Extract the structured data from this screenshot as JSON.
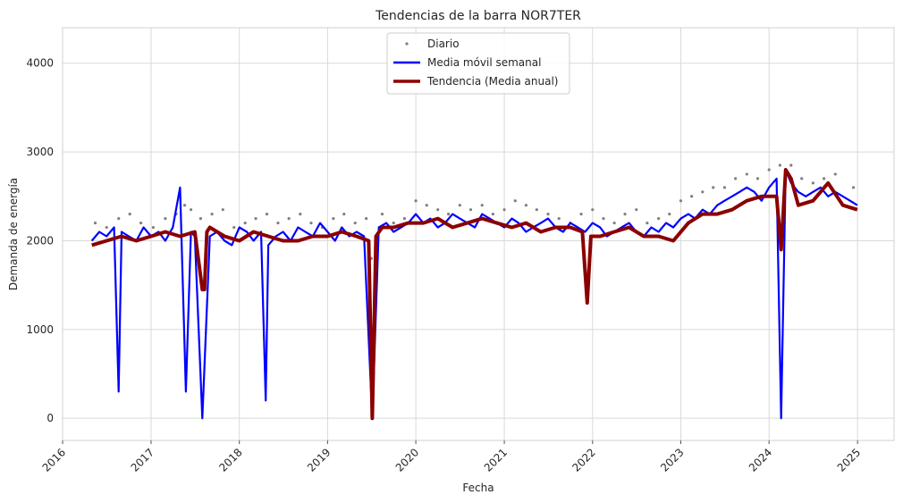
{
  "chart_data": {
    "type": "line",
    "title": "Tendencias de la barra NOR7TER",
    "xlabel": "Fecha",
    "ylabel": "Demanda de energía",
    "xlim": [
      "2016-01-01",
      "2025-06-01"
    ],
    "ylim": [
      -250,
      4400
    ],
    "x_ticks": [
      "2016",
      "2017",
      "2018",
      "2019",
      "2020",
      "2021",
      "2022",
      "2023",
      "2024",
      "2025"
    ],
    "y_ticks": [
      0,
      1000,
      2000,
      3000,
      4000
    ],
    "grid": true,
    "legend_position": "top-center",
    "series": [
      {
        "name": "Diario",
        "kind": "scatter",
        "color": "#808080",
        "x": [
          "2016-05-15",
          "2016-07-01",
          "2016-08-20",
          "2016-10-05",
          "2016-11-20",
          "2017-01-10",
          "2017-03-01",
          "2017-04-15",
          "2017-05-20",
          "2017-06-15",
          "2017-07-25",
          "2017-09-10",
          "2017-10-25",
          "2017-12-10",
          "2018-01-25",
          "2018-03-10",
          "2018-04-25",
          "2018-06-10",
          "2018-07-25",
          "2018-09-10",
          "2018-10-25",
          "2018-12-10",
          "2019-01-25",
          "2019-03-10",
          "2019-04-25",
          "2019-06-10",
          "2019-07-01",
          "2019-08-15",
          "2019-10-01",
          "2019-11-15",
          "2020-01-01",
          "2020-02-15",
          "2020-04-01",
          "2020-05-15",
          "2020-07-01",
          "2020-08-15",
          "2020-10-01",
          "2020-11-15",
          "2021-01-01",
          "2021-02-15",
          "2021-04-01",
          "2021-05-15",
          "2021-07-01",
          "2021-08-15",
          "2021-10-01",
          "2021-11-15",
          "2022-01-01",
          "2022-02-15",
          "2022-04-01",
          "2022-05-15",
          "2022-07-01",
          "2022-08-15",
          "2022-10-01",
          "2022-11-15",
          "2023-01-01",
          "2023-02-15",
          "2023-04-01",
          "2023-05-15",
          "2023-07-01",
          "2023-08-15",
          "2023-10-01",
          "2023-11-15",
          "2024-01-01",
          "2024-02-15",
          "2024-04-01",
          "2024-05-15",
          "2024-07-01",
          "2024-08-15",
          "2024-10-01",
          "2024-12-15"
        ],
        "y": [
          2200,
          2150,
          2250,
          2300,
          2200,
          2150,
          2250,
          2300,
          2400,
          2350,
          2250,
          2300,
          2350,
          2150,
          2200,
          2250,
          2300,
          2200,
          2250,
          2300,
          2200,
          2150,
          2250,
          2300,
          2200,
          2250,
          1800,
          2300,
          2200,
          2250,
          2450,
          2400,
          2350,
          2300,
          2400,
          2350,
          2400,
          2300,
          2350,
          2450,
          2400,
          2350,
          2300,
          2250,
          2200,
          2300,
          2350,
          2250,
          2200,
          2300,
          2350,
          2200,
          2250,
          2300,
          2450,
          2500,
          2550,
          2600,
          2600,
          2700,
          2750,
          2700,
          2800,
          2850,
          2850,
          2700,
          2650,
          2700,
          2750,
          2600
        ]
      },
      {
        "name": "Media móvil semanal",
        "kind": "line",
        "color": "#0000ff",
        "x": [
          "2016-05-01",
          "2016-06-01",
          "2016-07-01",
          "2016-08-01",
          "2016-08-20",
          "2016-09-01",
          "2016-10-01",
          "2016-11-01",
          "2016-12-01",
          "2017-01-01",
          "2017-02-01",
          "2017-03-01",
          "2017-04-01",
          "2017-05-01",
          "2017-05-25",
          "2017-06-15",
          "2017-07-01",
          "2017-08-01",
          "2017-09-01",
          "2017-10-01",
          "2017-11-01",
          "2017-12-01",
          "2018-01-01",
          "2018-02-01",
          "2018-03-01",
          "2018-04-01",
          "2018-04-20",
          "2018-05-01",
          "2018-06-01",
          "2018-07-01",
          "2018-08-01",
          "2018-09-01",
          "2018-10-01",
          "2018-11-01",
          "2018-12-01",
          "2019-01-01",
          "2019-02-01",
          "2019-03-01",
          "2019-04-01",
          "2019-05-01",
          "2019-06-01",
          "2019-07-05",
          "2019-08-01",
          "2019-09-01",
          "2019-10-01",
          "2019-11-01",
          "2019-12-01",
          "2020-01-01",
          "2020-02-01",
          "2020-03-01",
          "2020-04-01",
          "2020-05-01",
          "2020-06-01",
          "2020-07-01",
          "2020-08-01",
          "2020-09-01",
          "2020-10-01",
          "2020-11-01",
          "2020-12-01",
          "2021-01-01",
          "2021-02-01",
          "2021-03-01",
          "2021-04-01",
          "2021-05-01",
          "2021-06-01",
          "2021-07-01",
          "2021-08-01",
          "2021-09-01",
          "2021-10-01",
          "2021-11-01",
          "2021-12-01",
          "2022-01-01",
          "2022-02-01",
          "2022-03-01",
          "2022-04-01",
          "2022-05-01",
          "2022-06-01",
          "2022-07-01",
          "2022-08-01",
          "2022-09-01",
          "2022-10-01",
          "2022-11-01",
          "2022-12-01",
          "2023-01-01",
          "2023-02-01",
          "2023-03-01",
          "2023-04-01",
          "2023-05-01",
          "2023-06-01",
          "2023-07-01",
          "2023-08-01",
          "2023-09-01",
          "2023-10-01",
          "2023-11-01",
          "2023-12-01",
          "2024-01-01",
          "2024-02-01",
          "2024-02-20",
          "2024-03-10",
          "2024-04-01",
          "2024-05-01",
          "2024-06-01",
          "2024-07-01",
          "2024-08-01",
          "2024-09-01",
          "2024-10-01",
          "2024-11-01",
          "2024-12-01",
          "2024-12-31"
        ],
        "y": [
          2000,
          2100,
          2050,
          2150,
          300,
          2100,
          2050,
          2000,
          2150,
          2050,
          2100,
          2000,
          2150,
          2600,
          300,
          2100,
          2050,
          0,
          2050,
          2100,
          2000,
          1950,
          2150,
          2100,
          2000,
          2100,
          200,
          1950,
          2050,
          2100,
          2000,
          2150,
          2100,
          2050,
          2200,
          2100,
          2000,
          2150,
          2050,
          2100,
          2050,
          0,
          2150,
          2200,
          2100,
          2150,
          2200,
          2300,
          2200,
          2250,
          2150,
          2200,
          2300,
          2250,
          2200,
          2150,
          2300,
          2250,
          2200,
          2150,
          2250,
          2200,
          2100,
          2150,
          2200,
          2250,
          2150,
          2100,
          2200,
          2150,
          2100,
          2200,
          2150,
          2050,
          2100,
          2150,
          2200,
          2100,
          2050,
          2150,
          2100,
          2200,
          2150,
          2250,
          2300,
          2250,
          2350,
          2300,
          2400,
          2450,
          2500,
          2550,
          2600,
          2550,
          2450,
          2600,
          2700,
          0,
          2800,
          2650,
          2550,
          2500,
          2550,
          2600,
          2500,
          2550,
          2500,
          2450,
          2400
        ]
      },
      {
        "name": "Tendencia (Media anual)",
        "kind": "line",
        "color": "#8b0000",
        "x": [
          "2016-05-01",
          "2016-07-01",
          "2016-09-01",
          "2016-11-01",
          "2017-01-01",
          "2017-03-01",
          "2017-05-01",
          "2017-07-01",
          "2017-08-01",
          "2017-08-10",
          "2017-08-20",
          "2017-09-01",
          "2017-11-01",
          "2018-01-01",
          "2018-03-01",
          "2018-05-01",
          "2018-07-01",
          "2018-09-01",
          "2018-11-01",
          "2019-01-01",
          "2019-03-01",
          "2019-05-01",
          "2019-06-20",
          "2019-07-05",
          "2019-07-20",
          "2019-08-15",
          "2019-10-01",
          "2019-12-01",
          "2020-02-01",
          "2020-04-01",
          "2020-06-01",
          "2020-08-01",
          "2020-10-01",
          "2020-12-01",
          "2021-02-01",
          "2021-04-01",
          "2021-06-01",
          "2021-08-01",
          "2021-10-01",
          "2021-11-20",
          "2021-12-10",
          "2021-12-25",
          "2022-02-01",
          "2022-04-01",
          "2022-06-01",
          "2022-08-01",
          "2022-10-01",
          "2022-12-01",
          "2023-02-01",
          "2023-04-01",
          "2023-06-01",
          "2023-08-01",
          "2023-10-01",
          "2023-12-01",
          "2024-02-01",
          "2024-02-20",
          "2024-03-10",
          "2024-04-01",
          "2024-05-01",
          "2024-07-01",
          "2024-09-01",
          "2024-11-01",
          "2024-12-31"
        ],
        "y": [
          1950,
          2000,
          2050,
          2000,
          2050,
          2100,
          2050,
          2100,
          1450,
          1450,
          2100,
          2150,
          2050,
          2000,
          2100,
          2050,
          2000,
          2000,
          2050,
          2050,
          2100,
          2050,
          2000,
          0,
          2050,
          2150,
          2150,
          2200,
          2200,
          2250,
          2150,
          2200,
          2250,
          2200,
          2150,
          2200,
          2100,
          2150,
          2150,
          2100,
          1300,
          2050,
          2050,
          2100,
          2150,
          2050,
          2050,
          2000,
          2200,
          2300,
          2300,
          2350,
          2450,
          2500,
          2500,
          1900,
          2800,
          2700,
          2400,
          2450,
          2650,
          2400,
          2350
        ]
      }
    ]
  }
}
